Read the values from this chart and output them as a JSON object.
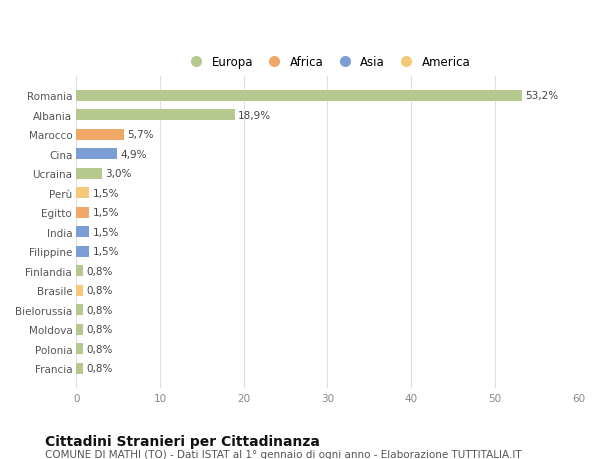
{
  "categories": [
    "Francia",
    "Polonia",
    "Moldova",
    "Bielorussia",
    "Brasile",
    "Finlandia",
    "Filippine",
    "India",
    "Egitto",
    "Perù",
    "Ucraina",
    "Cina",
    "Marocco",
    "Albania",
    "Romania"
  ],
  "values": [
    0.8,
    0.8,
    0.8,
    0.8,
    0.8,
    0.8,
    1.5,
    1.5,
    1.5,
    1.5,
    3.0,
    4.9,
    5.7,
    18.9,
    53.2
  ],
  "labels": [
    "0,8%",
    "0,8%",
    "0,8%",
    "0,8%",
    "0,8%",
    "0,8%",
    "1,5%",
    "1,5%",
    "1,5%",
    "1,5%",
    "3,0%",
    "4,9%",
    "5,7%",
    "18,9%",
    "53,2%"
  ],
  "colors": [
    "#b5c98e",
    "#b5c98e",
    "#b5c98e",
    "#b5c98e",
    "#f5c97a",
    "#b5c98e",
    "#7b9fd4",
    "#7b9fd4",
    "#f0a868",
    "#f5c97a",
    "#b5c98e",
    "#7b9fd4",
    "#f0a868",
    "#b5c98e",
    "#b5c98e"
  ],
  "legend": [
    {
      "label": "Europa",
      "color": "#b5c98e"
    },
    {
      "label": "Africa",
      "color": "#f0a868"
    },
    {
      "label": "Asia",
      "color": "#7b9fd4"
    },
    {
      "label": "America",
      "color": "#f5c97a"
    }
  ],
  "xlim": [
    0,
    60
  ],
  "xticks": [
    0,
    10,
    20,
    30,
    40,
    50,
    60
  ],
  "title": "Cittadini Stranieri per Cittadinanza",
  "subtitle": "COMUNE DI MATHI (TO) - Dati ISTAT al 1° gennaio di ogni anno - Elaborazione TUTTITALIA.IT",
  "background_color": "#ffffff",
  "grid_color": "#e0e0e0",
  "label_fontsize": 7.5,
  "tick_fontsize": 7.5,
  "ylabel_fontsize": 7.5,
  "title_fontsize": 10,
  "subtitle_fontsize": 7.5
}
